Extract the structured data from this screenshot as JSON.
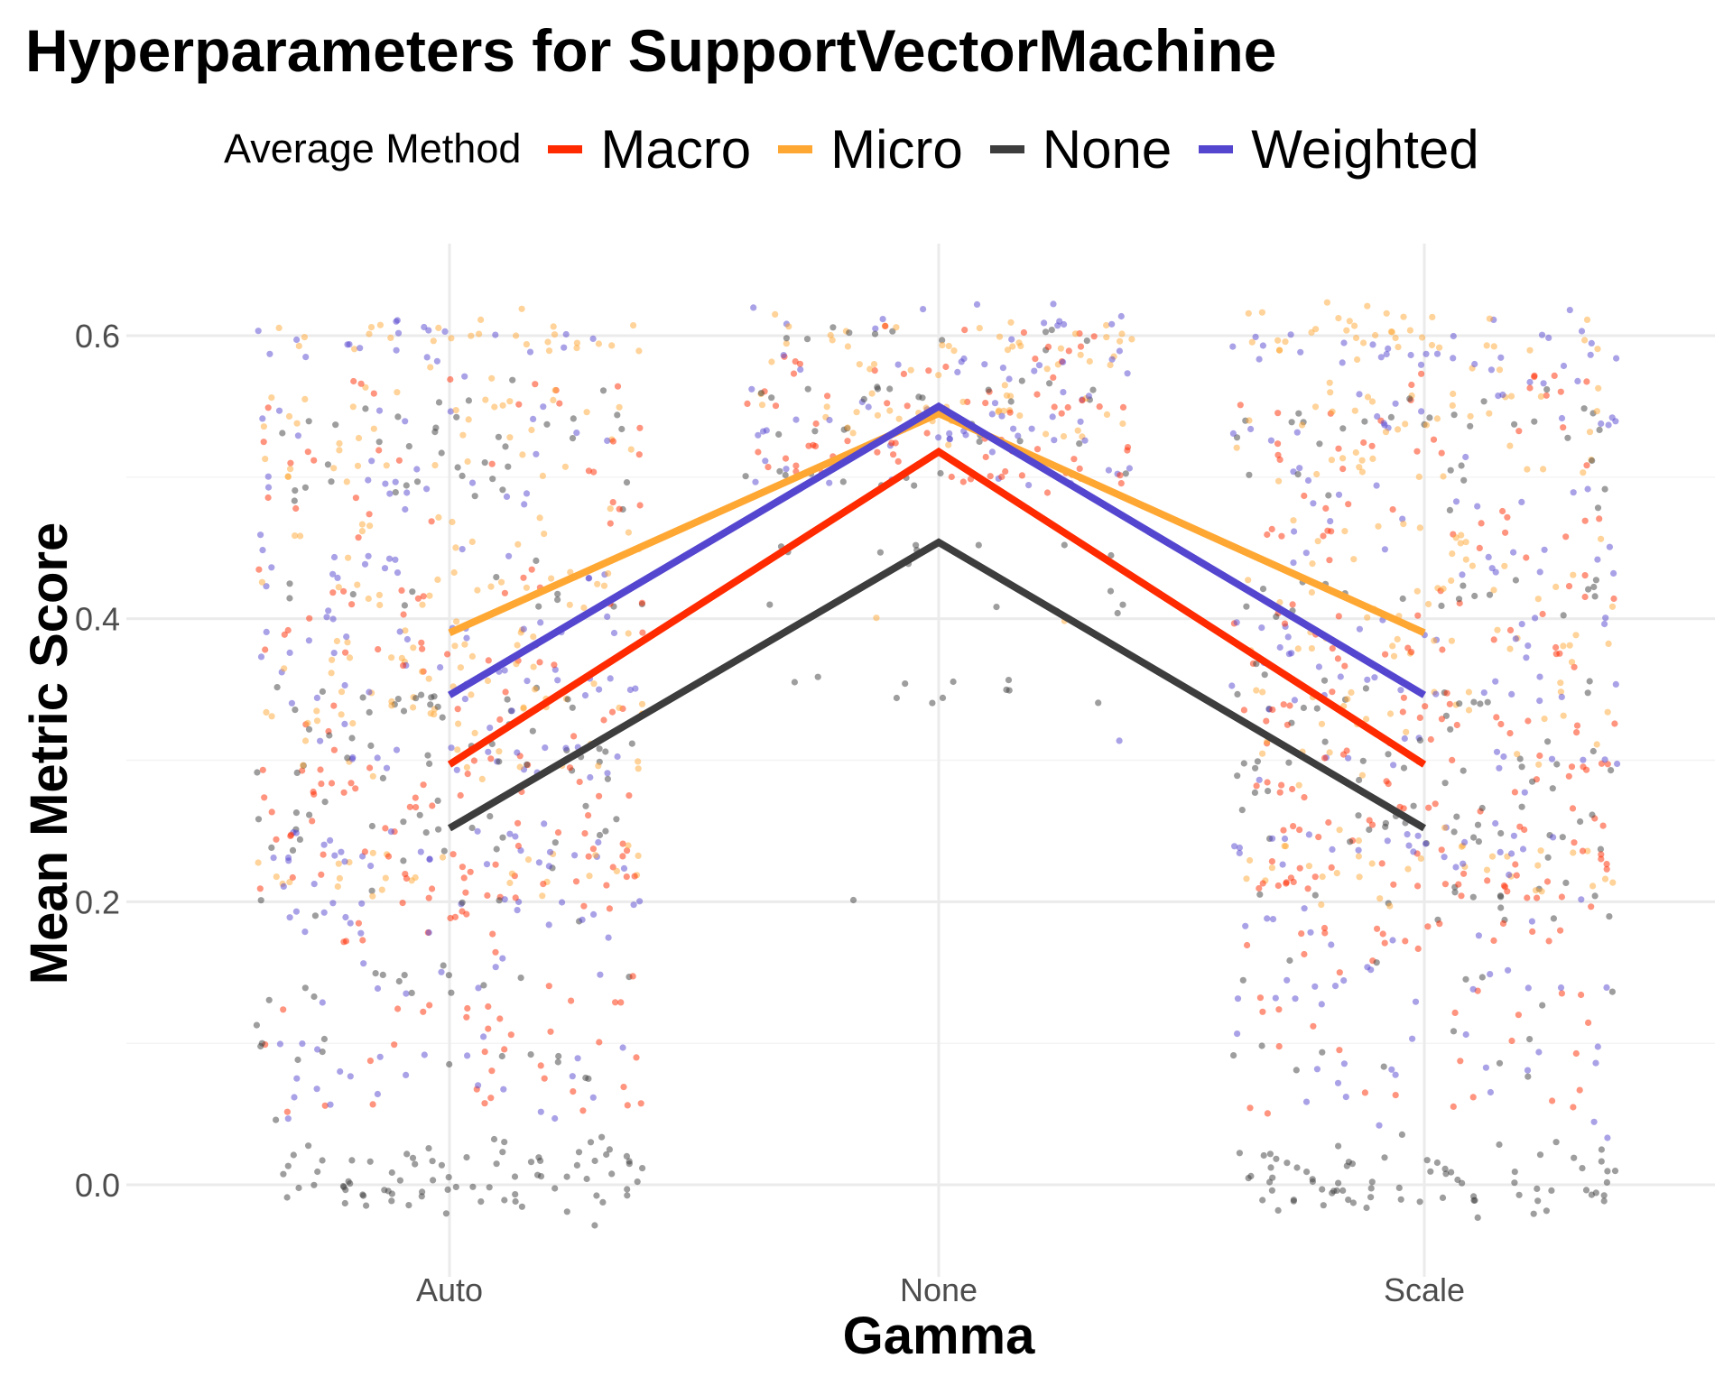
{
  "chart_data": {
    "type": "line",
    "title": "Hyperparameters for SupportVectorMachine",
    "xlabel": "Gamma",
    "ylabel": "Mean Metric Score",
    "categories": [
      "Auto",
      "None",
      "Scale"
    ],
    "ylim": [
      -0.065,
      0.665
    ],
    "yticks": [
      0.0,
      0.2,
      0.4,
      0.6
    ],
    "ytick_labels": [
      "0.0",
      "0.2",
      "0.4",
      "0.6"
    ],
    "grid": true,
    "legend": {
      "title": "Average Method",
      "position": "top"
    },
    "series": [
      {
        "name": "Macro",
        "color": "#ff2a00",
        "values": [
          0.297,
          0.518,
          0.297
        ]
      },
      {
        "name": "Micro",
        "color": "#ffa733",
        "values": [
          0.39,
          0.545,
          0.39
        ]
      },
      {
        "name": "None",
        "color": "#3d3d3d",
        "values": [
          0.252,
          0.454,
          0.252
        ]
      },
      {
        "name": "Weighted",
        "color": "#5546cf",
        "values": [
          0.346,
          0.55,
          0.346
        ]
      }
    ],
    "jitter_points": {
      "description": "individual scores jittered around each category",
      "count_per_group": {
        "Auto": 850,
        "None": 300,
        "Scale": 850
      }
    }
  }
}
